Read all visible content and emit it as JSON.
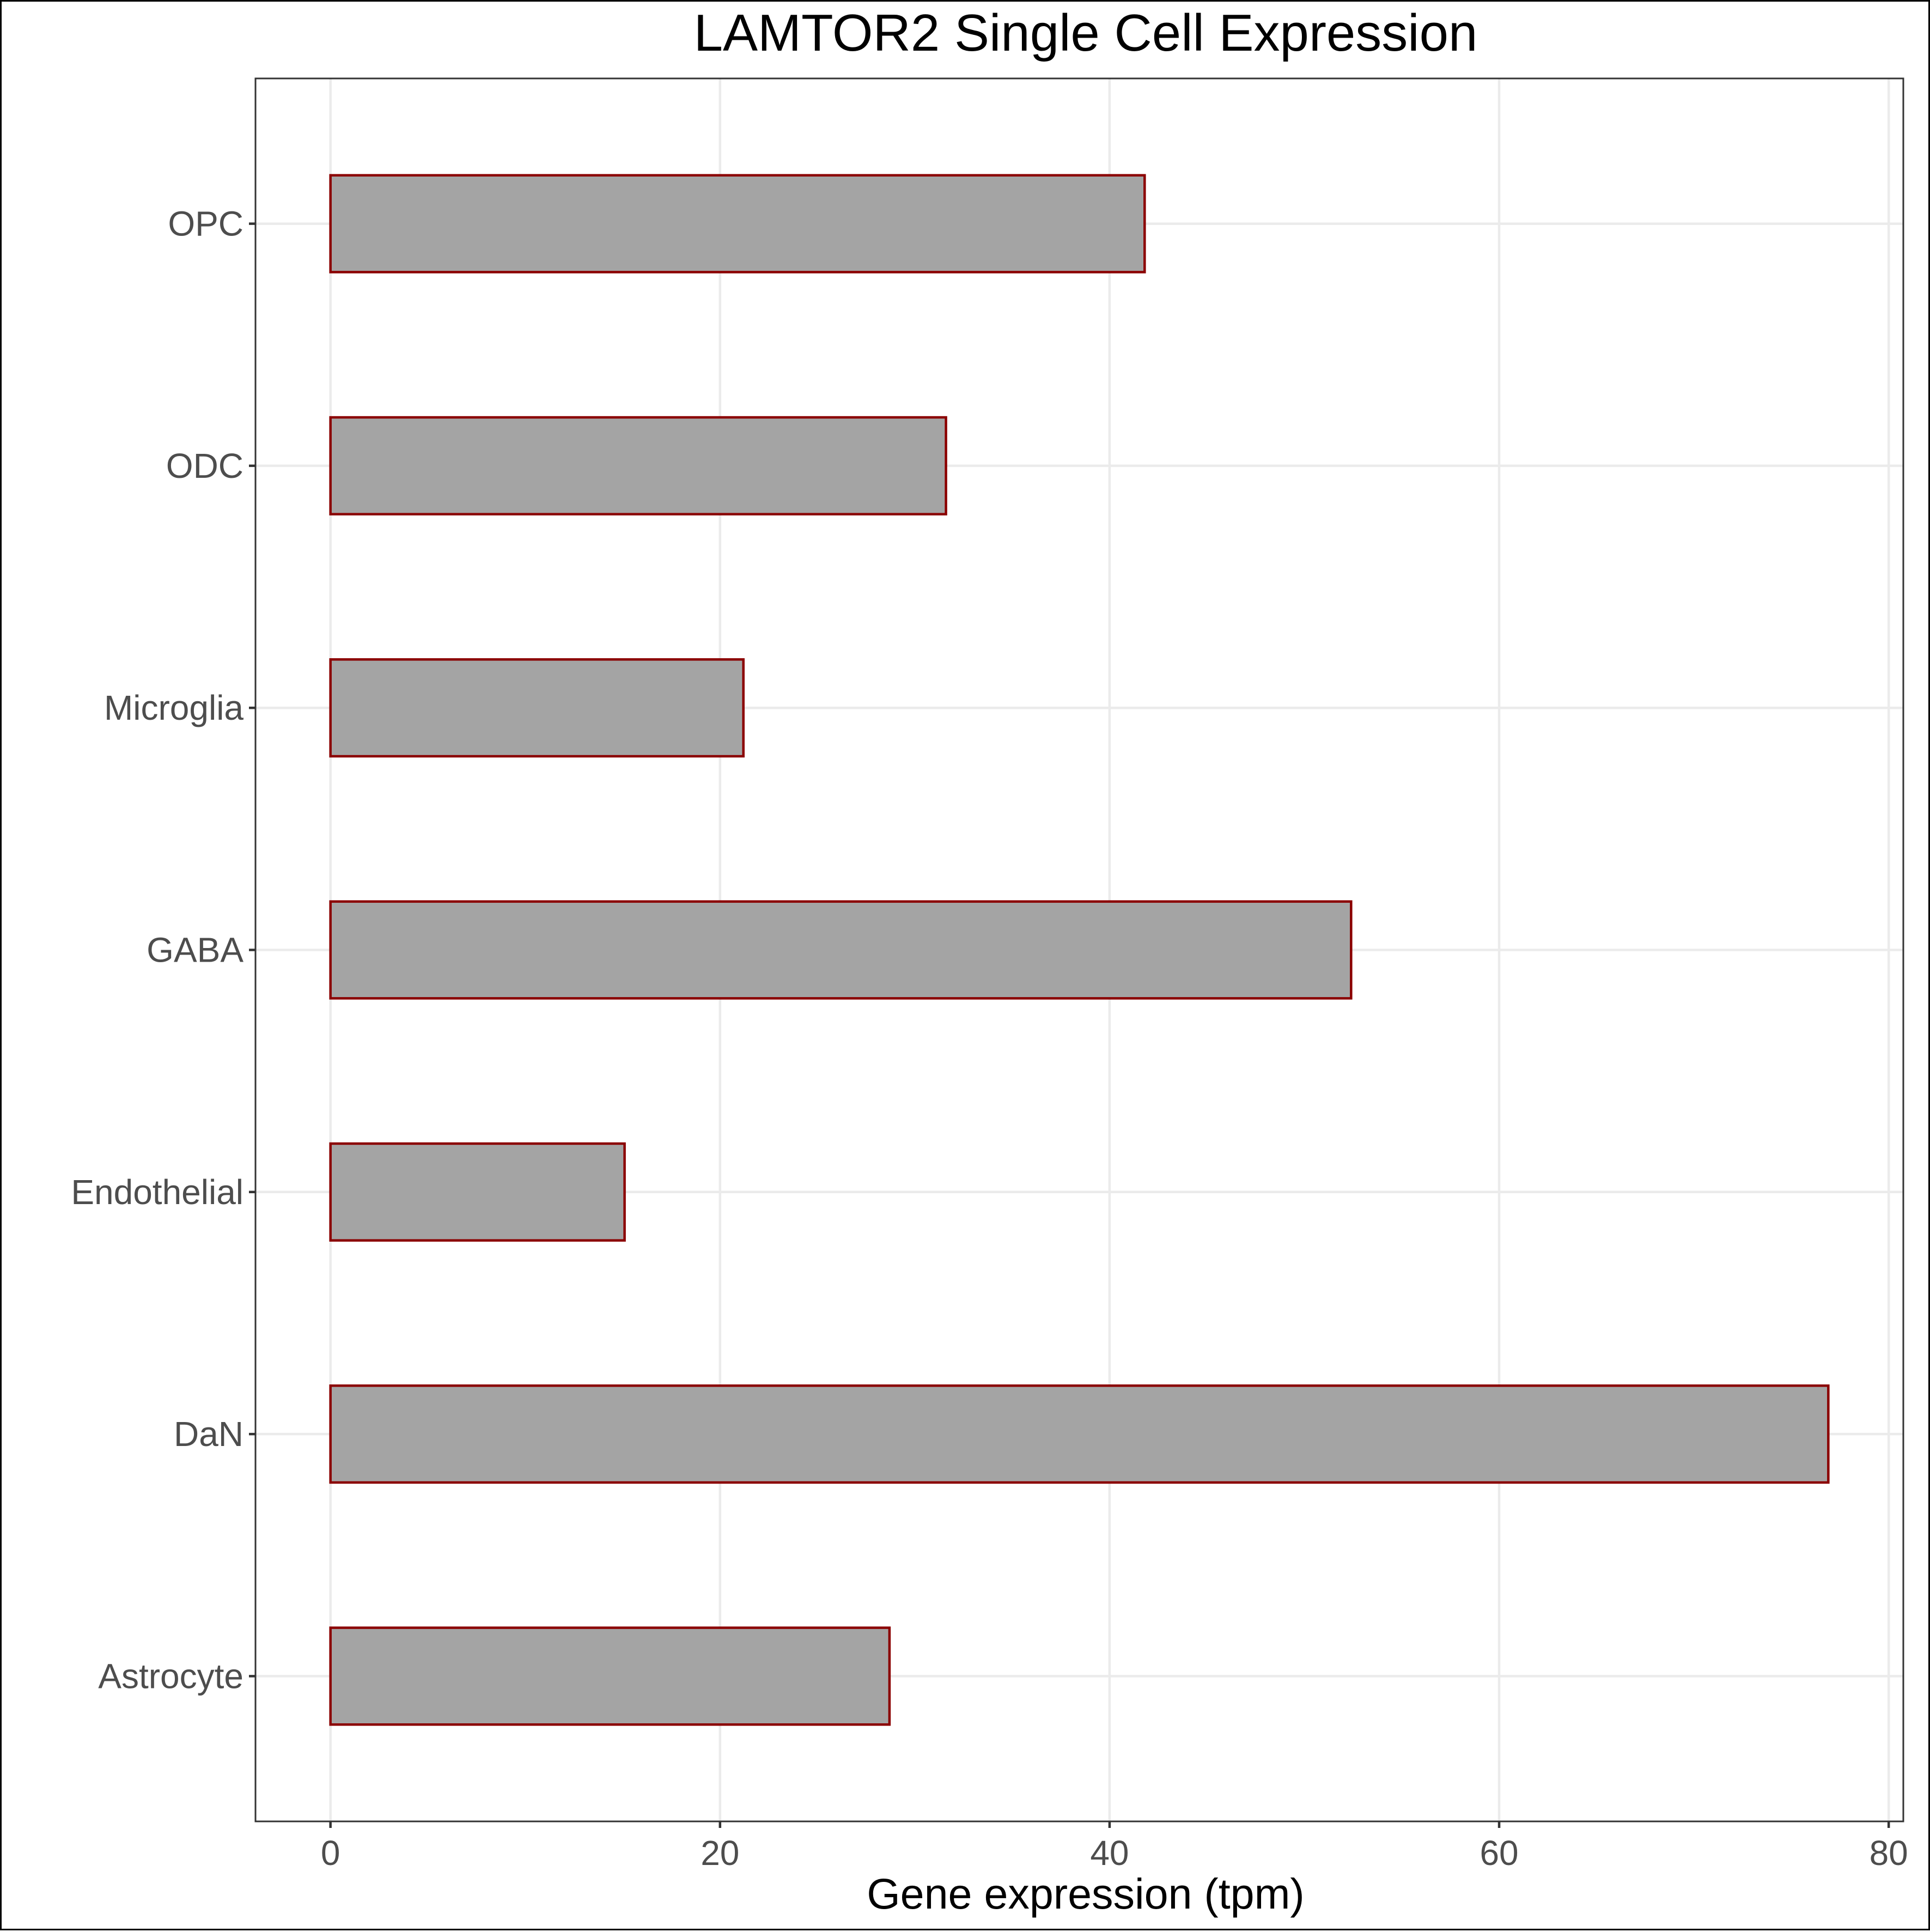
{
  "chart_data": {
    "type": "bar",
    "orientation": "horizontal",
    "title": "LAMTOR2 Single Cell Expression",
    "xlabel": "Gene expression (tpm)",
    "ylabel": "",
    "categories": [
      "Astrocyte",
      "DaN",
      "Endothelial",
      "GABA",
      "Microglia",
      "ODC",
      "OPC"
    ],
    "values": [
      28.7,
      76.9,
      15.1,
      52.4,
      21.2,
      31.6,
      41.8
    ],
    "xlim": [
      -3.85,
      80.75
    ],
    "x_ticks": [
      0,
      20,
      40,
      60,
      80
    ],
    "x_tick_labels": [
      "0",
      "20",
      "40",
      "60",
      "80"
    ],
    "grid": true,
    "legend": "none",
    "colors": {
      "bar_fill": "#a4a4a4",
      "bar_outline": "#8b0000",
      "grid": "#ebebeb",
      "text": "#000000",
      "tick_text": "#4d4d4d"
    }
  }
}
